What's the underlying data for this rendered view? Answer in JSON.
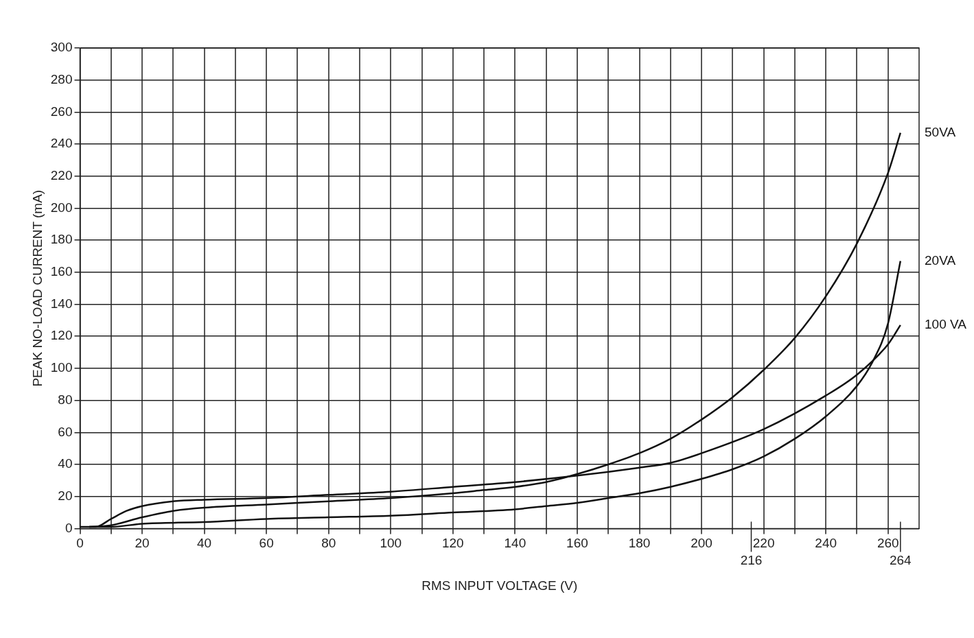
{
  "chart_data": {
    "type": "line",
    "xlabel": "RMS INPUT VOLTAGE (V)",
    "ylabel": "PEAK NO-LOAD CURRENT (mA)",
    "xlim": [
      0,
      270
    ],
    "ylim": [
      0,
      300
    ],
    "xticks": [
      0,
      {
        "value": 10,
        "label": null
      },
      20,
      {
        "value": 30,
        "label": null
      },
      40,
      {
        "value": 50,
        "label": null
      },
      60,
      {
        "value": 70,
        "label": null
      },
      80,
      {
        "value": 90,
        "label": null
      },
      100,
      {
        "value": 110,
        "label": null
      },
      120,
      {
        "value": 130,
        "label": null
      },
      140,
      {
        "value": 150,
        "label": null
      },
      160,
      {
        "value": 170,
        "label": null
      },
      180,
      {
        "value": 190,
        "label": null
      },
      200,
      {
        "value": 210,
        "label": null
      },
      220,
      {
        "value": 230,
        "label": null
      },
      240,
      {
        "value": 250,
        "label": null
      },
      260
    ],
    "ref_lines": [
      {
        "axis": "x",
        "value": 216,
        "label": "216"
      },
      {
        "axis": "x",
        "value": 264,
        "label": "264"
      }
    ],
    "yticks": [
      0,
      20,
      40,
      60,
      80,
      100,
      120,
      140,
      160,
      180,
      200,
      220,
      240,
      260,
      280,
      300
    ],
    "grid": true,
    "legend": false,
    "marker": "none",
    "line_style": "solid",
    "series": [
      {
        "name": "50VA",
        "color": "#111111",
        "x": [
          3,
          10,
          20,
          30,
          40,
          60,
          80,
          100,
          120,
          130,
          140,
          150,
          160,
          170,
          180,
          190,
          200,
          210,
          220,
          230,
          240,
          250,
          260,
          264
        ],
        "values": [
          1,
          2,
          7,
          11,
          13,
          15,
          17,
          19,
          22,
          24,
          26,
          29,
          34,
          40,
          47,
          56,
          68,
          82,
          99,
          119,
          145,
          178,
          222,
          247
        ]
      },
      {
        "name": "20VA",
        "color": "#111111",
        "x": [
          0,
          10,
          20,
          40,
          60,
          80,
          100,
          120,
          140,
          150,
          160,
          170,
          180,
          190,
          200,
          210,
          220,
          230,
          240,
          250,
          255,
          260,
          264
        ],
        "values": [
          1,
          1,
          3,
          4,
          6,
          7,
          8,
          10,
          12,
          14,
          16,
          19,
          22,
          26,
          31,
          37,
          45,
          56,
          70,
          89,
          104,
          128,
          167
        ]
      },
      {
        "name": "100 VA",
        "color": "#111111",
        "x": [
          3,
          5,
          10,
          15,
          20,
          30,
          40,
          60,
          80,
          100,
          120,
          140,
          160,
          180,
          190,
          200,
          220,
          240,
          250,
          260,
          264
        ],
        "values": [
          1,
          1,
          6,
          11,
          14,
          17,
          18,
          19,
          21,
          23,
          26,
          29,
          33,
          38,
          41,
          47,
          62,
          83,
          96,
          115,
          127
        ]
      }
    ]
  }
}
